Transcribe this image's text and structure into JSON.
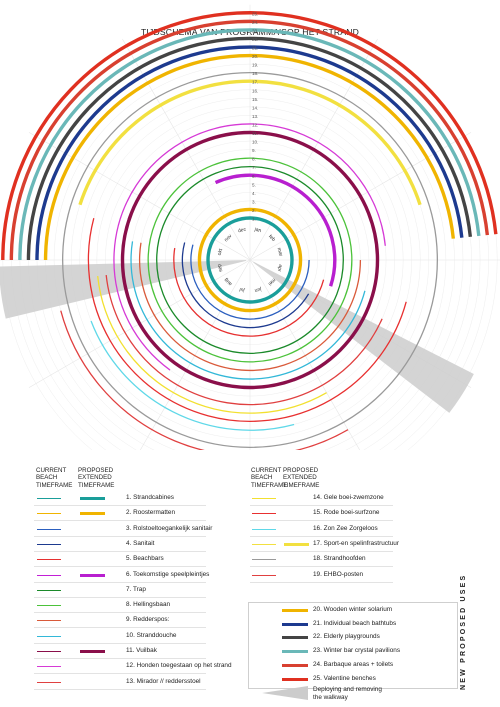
{
  "title": "TIJDSCHEMA VAN PROGRAMMA'SOP HET STRAND",
  "months": [
    "jan",
    "feb",
    "mar",
    "apr",
    "mei",
    "jun",
    "jul",
    "aug",
    "sep",
    "okt",
    "nov",
    "dec"
  ],
  "ring_numbers": [
    "1.",
    "2.",
    "3.",
    "4.",
    "5.",
    "6.",
    "7.",
    "8.",
    "9.",
    "10.",
    "11.",
    "12.",
    "13.",
    "14.",
    "15.",
    "16.",
    "17.",
    "18.",
    "19.",
    "20.",
    "21.",
    "22.",
    "23.",
    "24.",
    "25."
  ],
  "columns": {
    "current": [
      "CURRENT",
      "BEACH",
      "TIMEFRAME"
    ],
    "proposed": [
      "PROPOSED",
      "EXTENDED",
      "TIMEFRAME"
    ]
  },
  "side_label": "NEW PROPOSED USES",
  "legend_left": [
    {
      "label": "1. Strandcabines",
      "color": "#1a9e9a",
      "proposed": "#1a9e9a"
    },
    {
      "label": "2. Roostermatten",
      "color": "#f0b400",
      "proposed": "#f0b400"
    },
    {
      "label": "3. Rolstoeltoegankelijk sanitair",
      "color": "#2b5fbf",
      "proposed": ""
    },
    {
      "label": "4. Sanitait",
      "color": "#1d3a8f",
      "proposed": ""
    },
    {
      "label": "5. Beachbars",
      "color": "#e63030",
      "proposed": ""
    },
    {
      "label": "6. Toekomstige speelpleintjes",
      "color": "#c21fd6",
      "proposed": "#b81fcf"
    },
    {
      "label": "7. Trap",
      "color": "#1b8a2a",
      "proposed": ""
    },
    {
      "label": "8. Hellingsbaan",
      "color": "#4cc23a",
      "proposed": ""
    },
    {
      "label": "9. Redderspos:",
      "color": "#d95a3a",
      "proposed": ""
    },
    {
      "label": "10. Stranddouche",
      "color": "#33b8d8",
      "proposed": ""
    },
    {
      "label": "11. Vuilbak",
      "color": "#8a0f4a",
      "proposed": "#8a0f4a"
    },
    {
      "label": "12. Honden toegestaan op het strand",
      "color": "#d63ad6",
      "proposed": ""
    },
    {
      "label": "13. Mirador // reddersstoel",
      "color": "#e04040",
      "proposed": ""
    }
  ],
  "legend_right": [
    {
      "label": "14. Gele boei-zwemzone",
      "color": "#f2e030",
      "proposed": ""
    },
    {
      "label": "15. Rode boei-surfzone",
      "color": "#e83030",
      "proposed": ""
    },
    {
      "label": "16. Zon Zee Zorgeloos",
      "color": "#5fd8e8",
      "proposed": ""
    },
    {
      "label": "17. Sport-en spelinfrastructuur",
      "color": "#f2e040",
      "proposed": "#f2e040"
    },
    {
      "label": "18. Strandhoofden",
      "color": "#9a9a9a",
      "proposed": ""
    },
    {
      "label": "19. EHBO-posten",
      "color": "#e04040",
      "proposed": ""
    }
  ],
  "new_uses": [
    {
      "label": "20. Wooden winter solarium",
      "color": "#f0b400"
    },
    {
      "label": "21. Individual beach bathtubs",
      "color": "#1d3a8f"
    },
    {
      "label": "22. Elderly playgrounds",
      "color": "#444444"
    },
    {
      "label": "23. Winter bar crystal pavilions",
      "color": "#6ab8b8"
    },
    {
      "label": "24. Barbaque areas + toilets",
      "color": "#d84030"
    },
    {
      "label": "25. Valentine benches",
      "color": "#e03020"
    }
  ],
  "walkway_label": [
    "Deploying and removing",
    "the walkway"
  ],
  "walkway_color": "#cccccc",
  "ring_styles": [
    {
      "color": "#1a9e9a",
      "start": 0,
      "end": 12,
      "proposed": true
    },
    {
      "color": "#f0b400",
      "start": 0,
      "end": 12,
      "proposed": true
    },
    {
      "color": "#2b5fbf",
      "start": 3,
      "end": 9.5,
      "proposed": false
    },
    {
      "color": "#1d3a8f",
      "start": 4,
      "end": 9.5,
      "proposed": false
    },
    {
      "color": "#e63030",
      "start": 3.5,
      "end": 9.3,
      "proposed": false
    },
    {
      "color": "#b81fcf",
      "start": 11.2,
      "end": 3.6,
      "proposed": true
    },
    {
      "color": "#1b8a2a",
      "start": 0,
      "end": 12,
      "proposed": false
    },
    {
      "color": "#4cc23a",
      "start": 0,
      "end": 12,
      "proposed": false
    },
    {
      "color": "#d95a3a",
      "start": 3,
      "end": 9.3,
      "proposed": false
    },
    {
      "color": "#33b8d8",
      "start": 3.5,
      "end": 9.3,
      "proposed": false
    },
    {
      "color": "#8a0f4a",
      "start": 0,
      "end": 12,
      "proposed": true
    },
    {
      "color": "#d63ad6",
      "start": 7.2,
      "end": 2.8,
      "proposed": false
    },
    {
      "color": "#e04040",
      "start": 3.8,
      "end": 8.8,
      "proposed": false
    },
    {
      "color": "#f2e030",
      "start": 5,
      "end": 8.8,
      "proposed": false
    },
    {
      "color": "#e83030",
      "start": 3.5,
      "end": 9.5,
      "proposed": false
    },
    {
      "color": "#5fd8e8",
      "start": 5.5,
      "end": 8.3,
      "proposed": false
    },
    {
      "color": "#f2e040",
      "start": 9.6,
      "end": 2.4,
      "proposed": true
    },
    {
      "color": "#9a9a9a",
      "start": 0,
      "end": 12,
      "proposed": false
    },
    {
      "color": "#e04040",
      "start": 5,
      "end": 8.5,
      "proposed": false
    },
    {
      "color": "#f0b400",
      "start": 9,
      "end": 2.8,
      "proposed": true
    },
    {
      "color": "#1d3a8f",
      "start": 9,
      "end": 2.8,
      "proposed": true
    },
    {
      "color": "#444444",
      "start": 9,
      "end": 2.8,
      "proposed": true
    },
    {
      "color": "#6ab8b8",
      "start": 9,
      "end": 2.8,
      "proposed": true
    },
    {
      "color": "#d84030",
      "start": 9,
      "end": 2.8,
      "proposed": true
    },
    {
      "color": "#e03020",
      "start": 9,
      "end": 2.8,
      "proposed": true
    }
  ]
}
